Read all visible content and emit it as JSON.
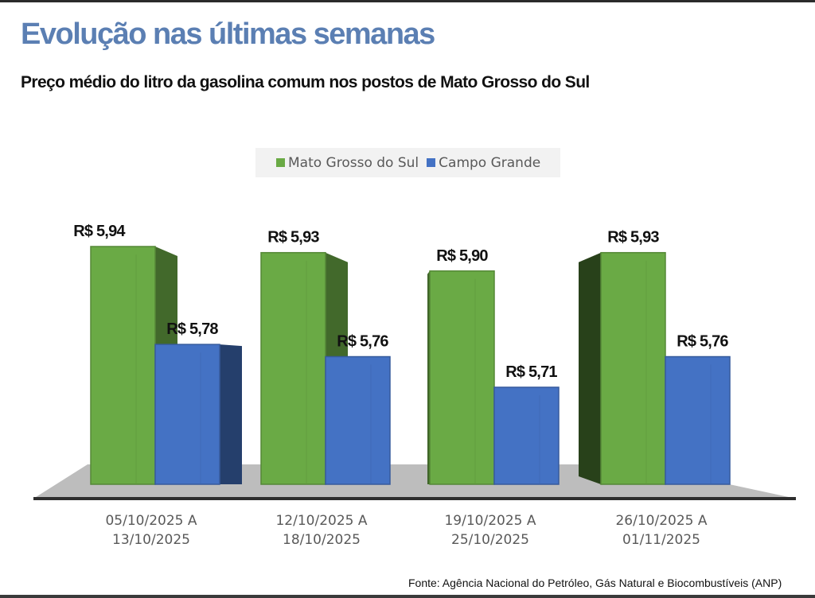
{
  "header": {
    "title": "Evolução nas últimas semanas",
    "subtitle": "Preço médio do litro da gasolina comum nos postos de Mato Grosso do Sul"
  },
  "footer": {
    "source": "Fonte: Agência Nacional do Petróleo, Gás Natural e Biocombustíveis (ANP)"
  },
  "colors": {
    "title": "#5b7fb3",
    "series_ms": "#6aaa45",
    "series_cg": "#4472c4",
    "floor": "#bdbdbd"
  },
  "chart_data": {
    "type": "bar",
    "title": "Preço médio do litro da gasolina comum nos postos de Mato Grosso do Sul",
    "xlabel": "",
    "ylabel": "",
    "grid": false,
    "legend_position": "top-center",
    "ylim": [
      5.0,
      6.0
    ],
    "categories": [
      [
        "05/10/2025 A",
        "13/10/2025"
      ],
      [
        "12/10/2025 A",
        "18/10/2025"
      ],
      [
        "19/10/2025  A",
        "25/10/2025"
      ],
      [
        "26/10/2025 A",
        "01/11/2025"
      ]
    ],
    "series": [
      {
        "name": "Mato Grosso do Sul",
        "color": "#6aaa45",
        "values": [
          5.94,
          5.93,
          5.9,
          5.93
        ],
        "labels": [
          "R$ 5,94",
          "R$ 5,93",
          "R$ 5,90",
          "R$ 5,93"
        ]
      },
      {
        "name": "Campo Grande",
        "color": "#4472c4",
        "values": [
          5.78,
          5.76,
          5.71,
          5.76
        ],
        "labels": [
          "R$ 5,78",
          "R$ 5,76",
          "R$ 5,71",
          "R$ 5,76"
        ]
      }
    ]
  }
}
